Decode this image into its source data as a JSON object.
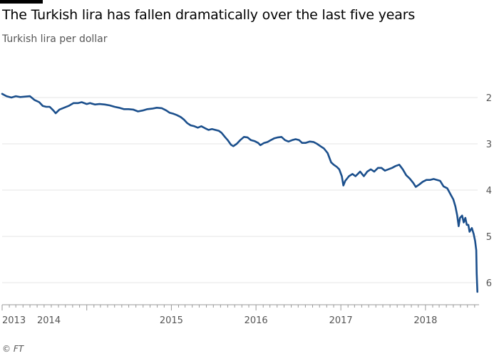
{
  "header": {
    "title": "The Turkish lira has fallen dramatically over the last five years",
    "subtitle": "Turkish lira per dollar"
  },
  "footer": {
    "source": "© FT"
  },
  "colors": {
    "line": "#1b4f8c",
    "grid": "#e6e6e6",
    "axis": "#555555"
  },
  "chart_data": {
    "type": "line",
    "title": "The Turkish lira has fallen dramatically over the last five years",
    "subtitle": "Turkish lira per dollar",
    "xlabel": "",
    "ylabel": "",
    "y_inverted": true,
    "ylim": [
      1.8,
      6.3
    ],
    "xlim": [
      "2013-01-01",
      "2018-08-20"
    ],
    "grid": true,
    "legend": "none",
    "y_ticks": [
      2,
      3,
      4,
      5,
      6
    ],
    "x_tick_labels": [
      {
        "label": "2013",
        "date": "2013-01-01"
      },
      {
        "label": "2014",
        "date": "2014-01-01"
      },
      {
        "label": "2015",
        "date": "2015-01-01"
      },
      {
        "label": "2016",
        "date": "2016-01-01"
      },
      {
        "label": "2017",
        "date": "2017-01-01"
      },
      {
        "label": "2018",
        "date": "2018-01-01"
      }
    ],
    "series": [
      {
        "points": [
          [
            "2013-01-01",
            1.92
          ],
          [
            "2013-01-20",
            1.97
          ],
          [
            "2013-02-10",
            2.0
          ],
          [
            "2013-03-01",
            1.97
          ],
          [
            "2013-03-20",
            1.99
          ],
          [
            "2013-04-10",
            1.98
          ],
          [
            "2013-05-01",
            1.97
          ],
          [
            "2013-05-20",
            2.05
          ],
          [
            "2013-06-10",
            2.1
          ],
          [
            "2013-06-25",
            2.18
          ],
          [
            "2013-07-10",
            2.2
          ],
          [
            "2013-07-25",
            2.2
          ],
          [
            "2013-08-10",
            2.28
          ],
          [
            "2013-08-20",
            2.34
          ],
          [
            "2013-09-05",
            2.26
          ],
          [
            "2013-09-25",
            2.22
          ],
          [
            "2013-10-15",
            2.18
          ],
          [
            "2013-11-05",
            2.12
          ],
          [
            "2013-11-25",
            2.12
          ],
          [
            "2013-12-10",
            2.1
          ],
          [
            "2014-01-01",
            2.14
          ],
          [
            "2014-01-15",
            2.12
          ],
          [
            "2014-02-05",
            2.15
          ],
          [
            "2014-02-25",
            2.14
          ],
          [
            "2014-03-20",
            2.15
          ],
          [
            "2014-04-10",
            2.17
          ],
          [
            "2014-05-01",
            2.2
          ],
          [
            "2014-05-20",
            2.22
          ],
          [
            "2014-06-10",
            2.25
          ],
          [
            "2014-06-30",
            2.25
          ],
          [
            "2014-07-20",
            2.26
          ],
          [
            "2014-08-10",
            2.3
          ],
          [
            "2014-08-30",
            2.28
          ],
          [
            "2014-09-20",
            2.25
          ],
          [
            "2014-10-10",
            2.24
          ],
          [
            "2014-10-30",
            2.22
          ],
          [
            "2014-11-20",
            2.23
          ],
          [
            "2014-12-10",
            2.28
          ],
          [
            "2014-12-25",
            2.33
          ],
          [
            "2015-01-10",
            2.35
          ],
          [
            "2015-01-25",
            2.38
          ],
          [
            "2015-02-10",
            2.42
          ],
          [
            "2015-02-25",
            2.48
          ],
          [
            "2015-03-10",
            2.55
          ],
          [
            "2015-03-25",
            2.6
          ],
          [
            "2015-04-10",
            2.62
          ],
          [
            "2015-04-25",
            2.65
          ],
          [
            "2015-05-10",
            2.62
          ],
          [
            "2015-05-25",
            2.66
          ],
          [
            "2015-06-10",
            2.7
          ],
          [
            "2015-06-25",
            2.68
          ],
          [
            "2015-07-10",
            2.7
          ],
          [
            "2015-07-25",
            2.72
          ],
          [
            "2015-08-05",
            2.76
          ],
          [
            "2015-08-20",
            2.85
          ],
          [
            "2015-09-01",
            2.92
          ],
          [
            "2015-09-15",
            3.02
          ],
          [
            "2015-09-25",
            3.05
          ],
          [
            "2015-10-10",
            3.0
          ],
          [
            "2015-10-25",
            2.92
          ],
          [
            "2015-11-10",
            2.85
          ],
          [
            "2015-11-25",
            2.86
          ],
          [
            "2015-12-10",
            2.92
          ],
          [
            "2015-12-25",
            2.94
          ],
          [
            "2016-01-10",
            2.98
          ],
          [
            "2016-01-20",
            3.03
          ],
          [
            "2016-02-05",
            2.98
          ],
          [
            "2016-02-20",
            2.96
          ],
          [
            "2016-03-05",
            2.92
          ],
          [
            "2016-03-20",
            2.88
          ],
          [
            "2016-04-05",
            2.86
          ],
          [
            "2016-04-20",
            2.85
          ],
          [
            "2016-05-05",
            2.92
          ],
          [
            "2016-05-20",
            2.95
          ],
          [
            "2016-06-05",
            2.92
          ],
          [
            "2016-06-20",
            2.9
          ],
          [
            "2016-07-05",
            2.92
          ],
          [
            "2016-07-18",
            2.98
          ],
          [
            "2016-08-01",
            2.98
          ],
          [
            "2016-08-20",
            2.95
          ],
          [
            "2016-09-05",
            2.96
          ],
          [
            "2016-09-20",
            3.0
          ],
          [
            "2016-10-05",
            3.05
          ],
          [
            "2016-10-20",
            3.1
          ],
          [
            "2016-11-05",
            3.2
          ],
          [
            "2016-11-20",
            3.4
          ],
          [
            "2016-12-01",
            3.45
          ],
          [
            "2016-12-15",
            3.5
          ],
          [
            "2016-12-25",
            3.55
          ],
          [
            "2017-01-05",
            3.7
          ],
          [
            "2017-01-12",
            3.9
          ],
          [
            "2017-01-20",
            3.8
          ],
          [
            "2017-02-05",
            3.7
          ],
          [
            "2017-02-20",
            3.65
          ],
          [
            "2017-03-05",
            3.7
          ],
          [
            "2017-03-15",
            3.65
          ],
          [
            "2017-03-25",
            3.6
          ],
          [
            "2017-04-10",
            3.7
          ],
          [
            "2017-04-25",
            3.6
          ],
          [
            "2017-05-10",
            3.55
          ],
          [
            "2017-05-25",
            3.6
          ],
          [
            "2017-06-10",
            3.52
          ],
          [
            "2017-06-25",
            3.52
          ],
          [
            "2017-07-10",
            3.58
          ],
          [
            "2017-07-25",
            3.55
          ],
          [
            "2017-08-10",
            3.52
          ],
          [
            "2017-08-25",
            3.48
          ],
          [
            "2017-09-10",
            3.45
          ],
          [
            "2017-09-25",
            3.55
          ],
          [
            "2017-10-10",
            3.68
          ],
          [
            "2017-10-25",
            3.75
          ],
          [
            "2017-11-10",
            3.85
          ],
          [
            "2017-11-20",
            3.93
          ],
          [
            "2017-12-05",
            3.88
          ],
          [
            "2017-12-20",
            3.82
          ],
          [
            "2018-01-05",
            3.78
          ],
          [
            "2018-01-20",
            3.78
          ],
          [
            "2018-02-05",
            3.76
          ],
          [
            "2018-02-20",
            3.78
          ],
          [
            "2018-03-05",
            3.8
          ],
          [
            "2018-03-20",
            3.92
          ],
          [
            "2018-04-05",
            3.96
          ],
          [
            "2018-04-20",
            4.1
          ],
          [
            "2018-05-01",
            4.2
          ],
          [
            "2018-05-10",
            4.35
          ],
          [
            "2018-05-18",
            4.55
          ],
          [
            "2018-05-24",
            4.78
          ],
          [
            "2018-05-30",
            4.6
          ],
          [
            "2018-06-08",
            4.55
          ],
          [
            "2018-06-15",
            4.7
          ],
          [
            "2018-06-22",
            4.6
          ],
          [
            "2018-06-28",
            4.75
          ],
          [
            "2018-07-05",
            4.75
          ],
          [
            "2018-07-10",
            4.9
          ],
          [
            "2018-07-20",
            4.82
          ],
          [
            "2018-07-28",
            4.95
          ],
          [
            "2018-08-03",
            5.1
          ],
          [
            "2018-08-08",
            5.3
          ],
          [
            "2018-08-10",
            5.8
          ],
          [
            "2018-08-13",
            6.2
          ]
        ]
      }
    ]
  }
}
